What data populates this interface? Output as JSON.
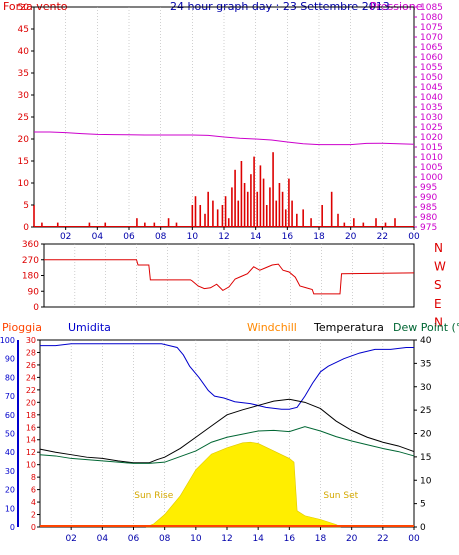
{
  "header": {
    "left_label": "Forza vento",
    "title": "24 hour graph day : 23 Settembre 2013",
    "right_label": "Pressione"
  },
  "colors": {
    "wind": "#dd0000",
    "gust": "#0000aa",
    "pressure": "#cc00cc",
    "direction": "#dd0000",
    "rain": "#ff4400",
    "humidity": "#0000cc",
    "windchill": "#ff8800",
    "temperature": "#000000",
    "dewpoint": "#006633",
    "solar": "#ffee00",
    "axes": "#000000",
    "grid": "#b0b0b0"
  },
  "chart_data": [
    {
      "id": "wind-pressure",
      "type": "bar",
      "title": "24 hour graph day : 23 Settembre 2013",
      "y_left_label": "Forza vento",
      "y_right_label": "Pressione",
      "ylim_left": [
        0,
        50
      ],
      "ylim_right": [
        975,
        1085
      ],
      "y_left_ticks": [
        "0",
        "5",
        "10",
        "15",
        "20",
        "25",
        "30",
        "35",
        "40",
        "45",
        "50"
      ],
      "y_right_ticks": [
        "975",
        "980",
        "985",
        "990",
        "995",
        "1000",
        "1005",
        "1010",
        "1015",
        "1020",
        "1025",
        "1030",
        "1035",
        "1040",
        "1045",
        "1050",
        "1055",
        "1060",
        "1065",
        "1070",
        "1075",
        "1080",
        "1085"
      ],
      "x_ticks": [
        "02",
        "04",
        "06",
        "08",
        "10",
        "12",
        "14",
        "16",
        "18",
        "20",
        "22",
        "00"
      ],
      "xlim_hours": [
        0,
        24
      ],
      "grid": true,
      "series": [
        {
          "name": "Forza vento",
          "x": [
            0.0,
            0.5,
            1.5,
            3.5,
            4.5,
            6.5,
            7.0,
            7.6,
            8.5,
            9.0,
            10.0,
            10.2,
            10.5,
            10.8,
            11.0,
            11.3,
            11.6,
            11.9,
            12.1,
            12.3,
            12.5,
            12.7,
            12.9,
            13.1,
            13.3,
            13.5,
            13.7,
            13.9,
            14.1,
            14.3,
            14.5,
            14.7,
            14.9,
            15.1,
            15.3,
            15.5,
            15.7,
            15.9,
            16.1,
            16.3,
            16.6,
            17.0,
            17.5,
            18.2,
            18.8,
            19.2,
            19.6,
            20.2,
            20.8,
            21.6,
            22.2,
            22.8
          ],
          "values": [
            5,
            1,
            1,
            1,
            1,
            2,
            1,
            1,
            2,
            1,
            5,
            7,
            5,
            3,
            8,
            6,
            4,
            5,
            7,
            2,
            9,
            13,
            6,
            15,
            10,
            8,
            12,
            16,
            8,
            14,
            11,
            5,
            9,
            17,
            6,
            10,
            8,
            4,
            11,
            6,
            3,
            4,
            2,
            5,
            8,
            3,
            1,
            2,
            1,
            2,
            1,
            2
          ]
        },
        {
          "name": "Pressione",
          "x": [
            0,
            1,
            2,
            3,
            4,
            5,
            6,
            7,
            8,
            9,
            10,
            11,
            12,
            13,
            14,
            15,
            16,
            17,
            18,
            19,
            20,
            21,
            22,
            23,
            24
          ],
          "values": [
            1022.5,
            1022.5,
            1022.2,
            1021.7,
            1021.3,
            1021.2,
            1021.1,
            1021.0,
            1021.0,
            1021.0,
            1021.0,
            1020.8,
            1020.0,
            1019.4,
            1019.0,
            1018.5,
            1017.5,
            1016.6,
            1016.2,
            1016.2,
            1016.2,
            1016.8,
            1016.9,
            1016.6,
            1016.4
          ]
        }
      ]
    },
    {
      "id": "wind-direction",
      "type": "line",
      "ylim": [
        0,
        360
      ],
      "y_ticks": [
        "0",
        "90",
        "180",
        "270",
        "360"
      ],
      "direction_labels": [
        "N",
        "W",
        "S",
        "E",
        "N"
      ],
      "xlim_hours": [
        0,
        24
      ],
      "grid": true,
      "series": [
        {
          "name": "Direzione",
          "x": [
            0,
            6.0,
            6.1,
            6.8,
            6.9,
            9.5,
            9.6,
            10.0,
            10.4,
            10.8,
            11.2,
            11.6,
            12.0,
            12.4,
            12.8,
            13.2,
            13.6,
            14.0,
            14.4,
            14.8,
            15.2,
            15.5,
            15.9,
            16.3,
            16.6,
            17.0,
            17.4,
            17.5,
            19.2,
            19.3,
            24
          ],
          "values": [
            270,
            270,
            240,
            240,
            155,
            155,
            150,
            120,
            105,
            110,
            130,
            95,
            115,
            160,
            175,
            190,
            230,
            210,
            225,
            240,
            245,
            210,
            200,
            170,
            120,
            110,
            100,
            75,
            75,
            190,
            195
          ]
        }
      ]
    },
    {
      "id": "temp-humidity",
      "type": "line",
      "legend": [
        "Pioggia",
        "Umidita",
        "Windchill",
        "Temperatura",
        "Dew Point (°C"
      ],
      "ylim_humidity": [
        0,
        100
      ],
      "ylim_temp_left": [
        0,
        30
      ],
      "ylim_temp_right": [
        0,
        40
      ],
      "y_hum_ticks": [
        "0",
        "10",
        "20",
        "30",
        "40",
        "50",
        "60",
        "70",
        "80",
        "90",
        "100"
      ],
      "y_temp_ticks": [
        "0",
        "2",
        "4",
        "6",
        "8",
        "10",
        "12",
        "14",
        "16",
        "18",
        "20",
        "22",
        "24",
        "26",
        "28",
        "30"
      ],
      "y_right_ticks": [
        "0",
        "5",
        "10",
        "15",
        "20",
        "25",
        "30",
        "35",
        "40"
      ],
      "x_ticks": [
        "02",
        "04",
        "06",
        "08",
        "10",
        "12",
        "14",
        "16",
        "18",
        "20",
        "22",
        "00"
      ],
      "xlim_hours": [
        0,
        24
      ],
      "annotations": {
        "sunrise": "Sun Rise",
        "sunset": "Sun Set"
      },
      "sunrise_hour": 7.3,
      "sunset_hour": 19.3,
      "grid": true,
      "series": [
        {
          "name": "Umidita",
          "x": [
            0,
            1,
            2,
            3,
            4,
            5,
            6,
            7,
            7.8,
            8.3,
            8.8,
            9.2,
            9.6,
            10.2,
            10.8,
            11.2,
            11.8,
            12.5,
            13.5,
            14.5,
            15.5,
            16.0,
            16.5,
            17.0,
            17.5,
            18.0,
            18.5,
            19.5,
            20.5,
            21.5,
            22.5,
            23.5,
            24
          ],
          "values": [
            97,
            97,
            98,
            98,
            98,
            98,
            98,
            98,
            98,
            97,
            96,
            92,
            86,
            80,
            73,
            70,
            69,
            67,
            66,
            64,
            63,
            63,
            64,
            70,
            77,
            83,
            86,
            90,
            93,
            95,
            95,
            96,
            96
          ]
        },
        {
          "name": "Temperatura",
          "x": [
            0,
            1,
            2,
            3,
            4,
            5,
            6,
            7,
            7.5,
            8,
            9,
            10,
            11,
            12,
            13,
            14,
            15,
            16,
            17,
            18,
            19,
            20,
            21,
            22,
            23,
            24
          ],
          "values": [
            12.5,
            12.0,
            11.6,
            11.2,
            11.0,
            10.6,
            10.3,
            10.3,
            10.8,
            11.2,
            12.6,
            14.4,
            16.2,
            18.0,
            18.8,
            19.5,
            20.2,
            20.5,
            20.0,
            19.0,
            17.0,
            15.5,
            14.4,
            13.6,
            13.0,
            12.1
          ]
        },
        {
          "name": "Dew Point (°C",
          "x": [
            0,
            1,
            2,
            3,
            4,
            5,
            6,
            7,
            7.5,
            8,
            9,
            10,
            11,
            12,
            13,
            14,
            15,
            16,
            17,
            18,
            19,
            20,
            21,
            22,
            23,
            24
          ],
          "values": [
            11.6,
            11.4,
            11.0,
            10.8,
            10.6,
            10.4,
            10.2,
            10.2,
            10.3,
            10.4,
            11.3,
            12.2,
            13.6,
            14.4,
            14.9,
            15.4,
            15.5,
            15.3,
            16.1,
            15.4,
            14.5,
            13.8,
            13.2,
            12.6,
            12.1,
            11.4
          ]
        },
        {
          "name": "Solare",
          "x": [
            6.8,
            7.3,
            8.0,
            9.0,
            10.0,
            11.0,
            12.0,
            13.0,
            13.5,
            14.0,
            15.0,
            16.0,
            16.3,
            16.5,
            17.0,
            18.0,
            19.0,
            19.3
          ],
          "values": [
            0,
            0.5,
            2.0,
            5.0,
            9.2,
            11.7,
            12.7,
            13.5,
            13.6,
            13.4,
            12.2,
            11.0,
            10.4,
            2.6,
            1.8,
            1.2,
            0.4,
            0
          ]
        },
        {
          "name": "Pioggia",
          "x": [
            0,
            24
          ],
          "values": [
            0.1,
            0.1
          ]
        }
      ]
    }
  ]
}
